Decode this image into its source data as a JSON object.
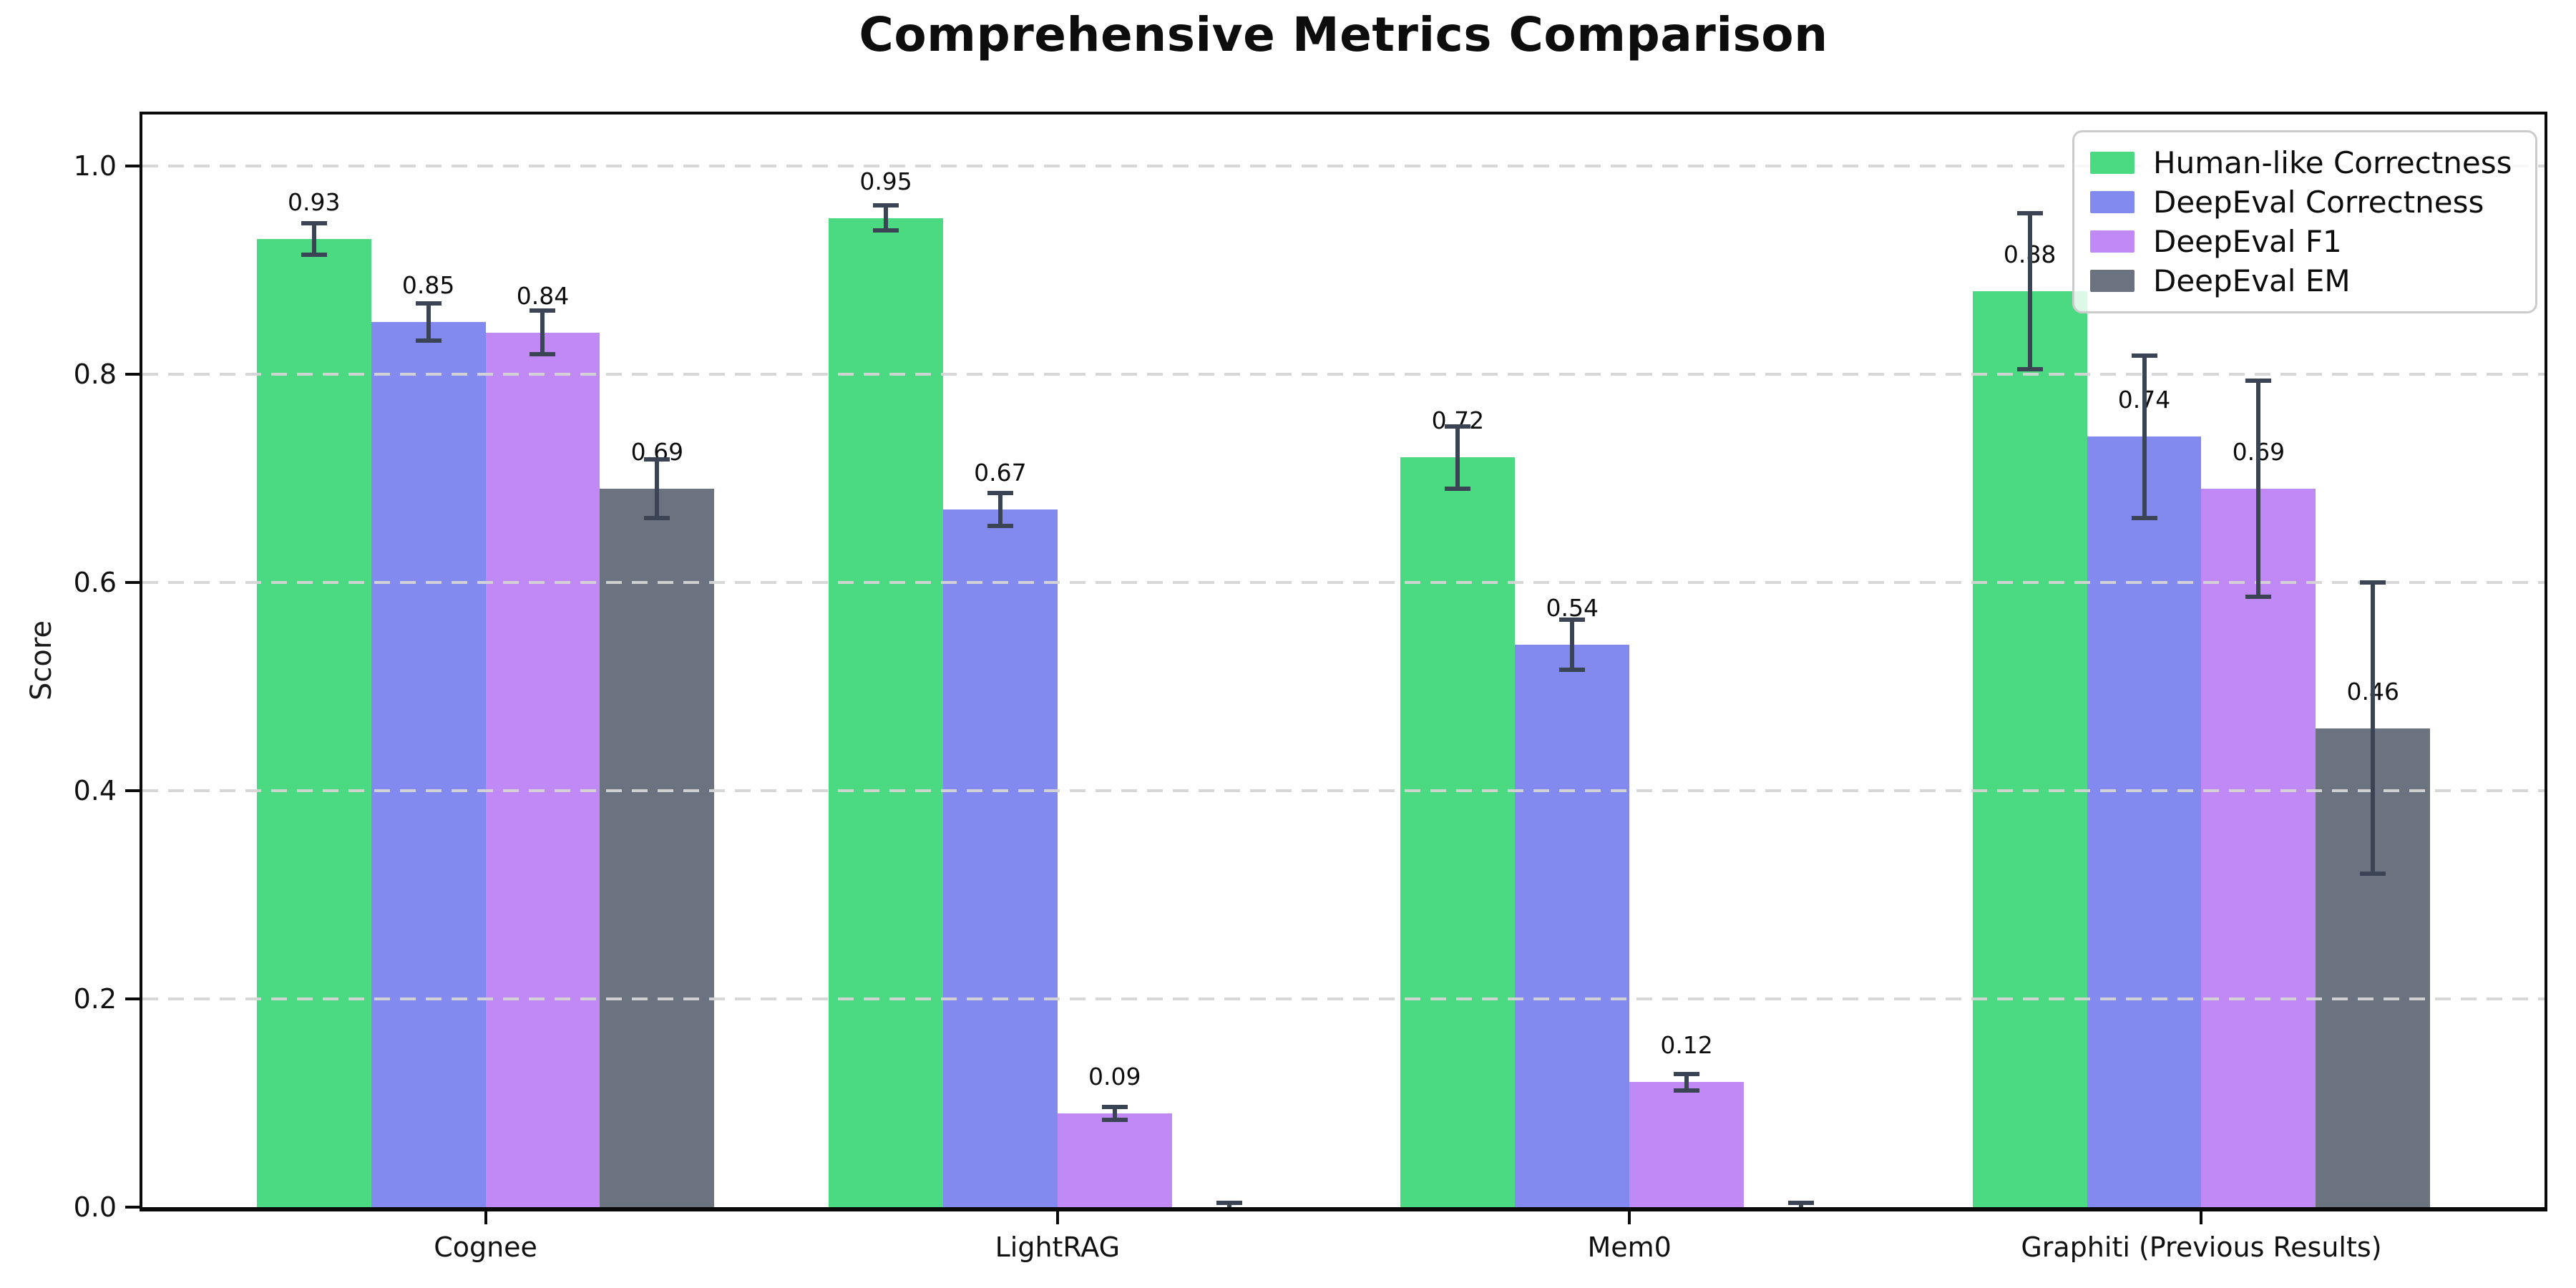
{
  "chart_data": {
    "type": "bar",
    "title": "Comprehensive Metrics Comparison",
    "ylabel": "Score",
    "xlabel": "",
    "categories": [
      "Cognee",
      "LightRAG",
      "Mem0",
      "Graphiti (Previous Results)"
    ],
    "series": [
      {
        "name": "Human-like Correctness",
        "color": "#4bd981",
        "values": [
          0.93,
          0.95,
          0.72,
          0.88
        ],
        "errors": [
          0.015,
          0.012,
          0.03,
          0.075
        ]
      },
      {
        "name": "DeepEval Correctness",
        "color": "#828af0",
        "values": [
          0.85,
          0.67,
          0.54,
          0.74
        ],
        "errors": [
          0.018,
          0.016,
          0.024,
          0.078
        ]
      },
      {
        "name": "DeepEval F1",
        "color": "#c089f5",
        "values": [
          0.84,
          0.09,
          0.12,
          0.69
        ],
        "errors": [
          0.021,
          0.006,
          0.008,
          0.104
        ]
      },
      {
        "name": "DeepEval EM",
        "color": "#6b7280",
        "values": [
          0.69,
          0.0,
          0.0,
          0.46
        ],
        "errors": [
          0.028,
          0.004,
          0.004,
          0.14
        ]
      }
    ],
    "value_labels": {
      "format": "two_decimals",
      "shown": [
        [
          "0.93",
          "0.95",
          "0.72",
          "0.88"
        ],
        [
          "0.85",
          "0.67",
          "0.54",
          "0.74"
        ],
        [
          "0.84",
          "0.09",
          "0.12",
          "0.69"
        ],
        [
          "0.69",
          null,
          null,
          "0.46"
        ]
      ]
    },
    "ylim": [
      0,
      1.0495
    ],
    "yticks": [
      0.0,
      0.2,
      0.4,
      0.6,
      0.8,
      1.0
    ],
    "ytick_labels": [
      "0.0",
      "0.2",
      "0.4",
      "0.6",
      "0.8",
      "1.0"
    ],
    "xlim": [
      -0.6,
      3.6
    ],
    "bar_width": 0.2,
    "bar_offsets": [
      -0.3,
      -0.1,
      0.1,
      0.3
    ],
    "grid": {
      "axis": "y",
      "style": "dashed",
      "color": "#d5d5d5",
      "on": true,
      "above_bars": true
    },
    "error_bar_color": "#3a4454",
    "legend": {
      "position": "upper right",
      "background": "#ffffff",
      "border_color": "#cbcbcb"
    }
  }
}
